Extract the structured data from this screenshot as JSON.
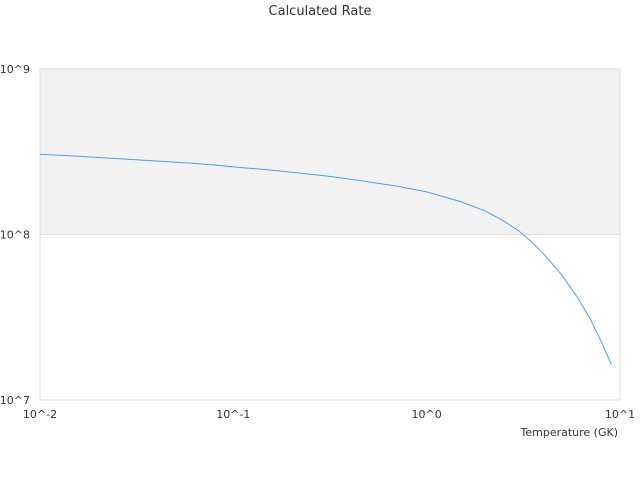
{
  "chart_data": {
    "type": "line",
    "title": "Calculated Rate",
    "xlabel": "Temperature (GK)",
    "ylabel": "",
    "x_scale": "log",
    "y_scale": "log",
    "xlim": [
      0.01,
      10
    ],
    "ylim": [
      10000000,
      1000000000
    ],
    "x_ticks": [
      {
        "value": 0.01,
        "label": "10^-2"
      },
      {
        "value": 0.1,
        "label": "10^-1"
      },
      {
        "value": 1,
        "label": "10^0"
      },
      {
        "value": 10,
        "label": "10^1"
      }
    ],
    "y_ticks": [
      {
        "value": 10000000,
        "label": "10^7"
      },
      {
        "value": 100000000,
        "label": "10^8"
      },
      {
        "value": 1000000000,
        "label": "10^9"
      }
    ],
    "shaded_band": {
      "y_from": 100000000,
      "y_to": 1000000000,
      "color": "#f2f2f2"
    },
    "grid": true,
    "legend": "none",
    "line_color": "#4a9ff5",
    "series": [
      {
        "points": [
          [
            0.01,
            305000000
          ],
          [
            0.015,
            298000000
          ],
          [
            0.02,
            292000000
          ],
          [
            0.03,
            284000000
          ],
          [
            0.04,
            278000000
          ],
          [
            0.06,
            270000000
          ],
          [
            0.08,
            263000000
          ],
          [
            0.1,
            256000000
          ],
          [
            0.15,
            246000000
          ],
          [
            0.2,
            238000000
          ],
          [
            0.3,
            226000000
          ],
          [
            0.4,
            216000000
          ],
          [
            0.5,
            208000000
          ],
          [
            0.7,
            196000000
          ],
          [
            1.0,
            181000000
          ],
          [
            1.5,
            158000000
          ],
          [
            2.0,
            139000000
          ],
          [
            2.5,
            121000000
          ],
          [
            3.0,
            105000000
          ],
          [
            3.5,
            90000000
          ],
          [
            4.0,
            77000000
          ],
          [
            5.0,
            57000000
          ],
          [
            6.0,
            42000000
          ],
          [
            7.0,
            31000000
          ],
          [
            8.0,
            22500000
          ],
          [
            9.0,
            16500000
          ]
        ]
      }
    ]
  }
}
